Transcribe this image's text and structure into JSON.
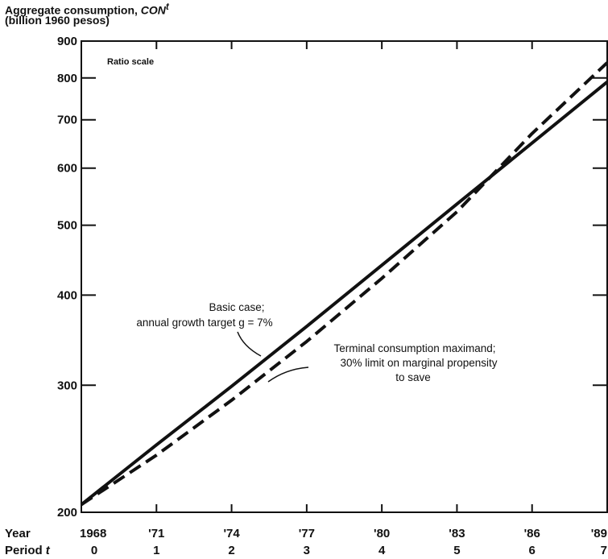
{
  "chart_data": {
    "type": "line",
    "ylabel_line1": "Aggregate consumption, ",
    "ylabel_var": "CON",
    "ylabel_sup": "t",
    "ylabel_line2": "(billion 1960 pesos)",
    "scale_note": "Ratio scale",
    "y_scale": "log",
    "ylim": [
      200,
      900
    ],
    "y_ticks": [
      200,
      300,
      400,
      500,
      600,
      700,
      800,
      900
    ],
    "xlim": [
      1968,
      1989
    ],
    "x_row_label_year": "Year",
    "x_row_label_period": "Period",
    "x_row_label_period_var": "t",
    "x_ticks": [
      {
        "year": 1968,
        "year_label": "1968",
        "period_label": "0"
      },
      {
        "year": 1971,
        "year_label": "'71",
        "period_label": "1"
      },
      {
        "year": 1974,
        "year_label": "'74",
        "period_label": "2"
      },
      {
        "year": 1977,
        "year_label": "'77",
        "period_label": "3"
      },
      {
        "year": 1980,
        "year_label": "'80",
        "period_label": "4"
      },
      {
        "year": 1983,
        "year_label": "'83",
        "period_label": "5"
      },
      {
        "year": 1986,
        "year_label": "'86",
        "period_label": "6"
      },
      {
        "year": 1989,
        "year_label": "'89",
        "period_label": "7"
      }
    ],
    "series": [
      {
        "key": "basic",
        "style": "solid",
        "color": "#111111",
        "label_lines": [
          "Basic case;",
          "annual growth target  g = 7%"
        ],
        "x": [
          1968,
          1971,
          1974,
          1977,
          1980,
          1983,
          1986,
          1989
        ],
        "y": [
          205,
          248,
          299,
          362,
          440,
          535,
          650,
          790
        ]
      },
      {
        "key": "terminal",
        "style": "dashed",
        "color": "#111111",
        "label_lines": [
          "Terminal consumption maximand;",
          "30% limit on marginal propensity",
          "to save"
        ],
        "x": [
          1968,
          1971,
          1974,
          1977,
          1980,
          1983,
          1986,
          1989
        ],
        "y": [
          205,
          240,
          286,
          345,
          422,
          522,
          670,
          840
        ]
      }
    ],
    "grid": false
  }
}
